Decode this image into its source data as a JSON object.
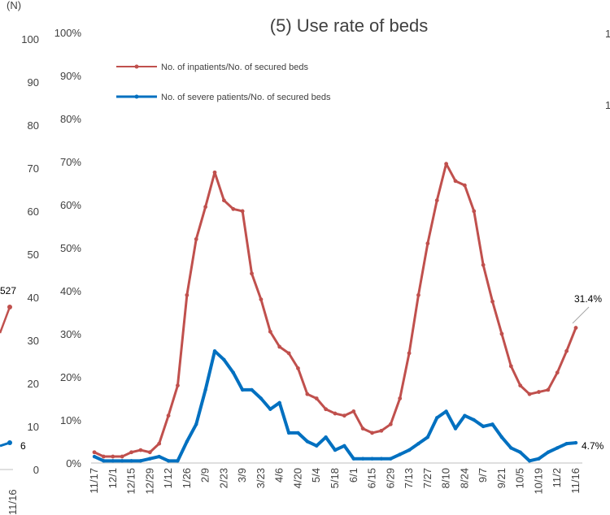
{
  "chart_data": [
    {
      "type": "line",
      "title": "",
      "ylabel": "(N)",
      "visible_partial": true,
      "yticks": [
        "0",
        "10",
        "20",
        "30",
        "40",
        "50",
        "60",
        "70",
        "80",
        "90",
        "100"
      ],
      "ylim": [
        0,
        100
      ],
      "xticks": [
        "11/16"
      ],
      "annotations": [
        "527",
        "6"
      ],
      "top_right_ticks": [
        "1",
        "1"
      ]
    },
    {
      "type": "line",
      "title": "(5) Use rate of beds",
      "xlabel": "",
      "ylabel": "",
      "ylim": [
        0,
        100
      ],
      "yticks": [
        "0%",
        "10%",
        "20%",
        "30%",
        "40%",
        "50%",
        "60%",
        "70%",
        "80%",
        "90%",
        "100%"
      ],
      "grid": false,
      "legend_position": "top-left",
      "x_tick_labels": [
        "11/17",
        "12/1",
        "12/15",
        "12/29",
        "1/12",
        "1/26",
        "2/9",
        "2/23",
        "3/9",
        "3/23",
        "4/6",
        "4/20",
        "5/4",
        "5/18",
        "6/1",
        "6/15",
        "6/29",
        "7/13",
        "7/27",
        "8/10",
        "8/24",
        "9/7",
        "9/21",
        "10/5",
        "10/19",
        "11/2",
        "11/16"
      ],
      "x": [
        "11/17",
        "11/24",
        "12/1",
        "12/8",
        "12/15",
        "12/22",
        "12/29",
        "1/5",
        "1/12",
        "1/19",
        "1/26",
        "2/2",
        "2/9",
        "2/16",
        "2/23",
        "3/2",
        "3/9",
        "3/16",
        "3/23",
        "3/30",
        "4/6",
        "4/13",
        "4/20",
        "4/27",
        "5/4",
        "5/11",
        "5/18",
        "5/25",
        "6/1",
        "6/8",
        "6/15",
        "6/22",
        "6/29",
        "7/6",
        "7/13",
        "7/20",
        "7/27",
        "8/3",
        "8/10",
        "8/17",
        "8/24",
        "8/31",
        "9/7",
        "9/14",
        "9/21",
        "9/28",
        "10/5",
        "10/12",
        "10/19",
        "10/26",
        "11/2",
        "11/9",
        "11/16"
      ],
      "series": [
        {
          "name": "No. of inpatients/No. of secured beds",
          "color": "#c0504d",
          "values": [
            2.5,
            1.5,
            1.5,
            1.5,
            2.5,
            3,
            2.5,
            4.5,
            11,
            18,
            39,
            52,
            59.5,
            67.5,
            61,
            59,
            58.5,
            44,
            38,
            30.5,
            27,
            25.5,
            22,
            16,
            15,
            12.5,
            11.5,
            11,
            12,
            8,
            7,
            7.5,
            9,
            15,
            25.5,
            39,
            51,
            61,
            69.5,
            65.5,
            64.5,
            58.5,
            46,
            37.5,
            30,
            22.5,
            18,
            16,
            16.5,
            17,
            21,
            26,
            31.4
          ]
        },
        {
          "name": "No. of severe patients/No. of secured beds",
          "color": "#0070c0",
          "values": [
            1.5,
            0.5,
            0.5,
            0.5,
            0.5,
            0.5,
            1,
            1.5,
            0.5,
            0.5,
            5,
            9,
            17,
            26,
            24,
            21,
            17,
            17,
            15,
            12.5,
            14,
            7,
            7,
            5,
            4,
            6,
            3,
            4,
            1,
            1,
            1,
            1,
            1,
            2,
            3,
            4.5,
            6,
            10.5,
            12,
            8,
            11,
            10,
            8.5,
            9,
            6,
            3.5,
            2.5,
            0.5,
            1,
            2.5,
            3.5,
            4.5,
            4.7
          ]
        }
      ],
      "annotations": [
        "31.4%",
        "4.7%"
      ]
    }
  ]
}
